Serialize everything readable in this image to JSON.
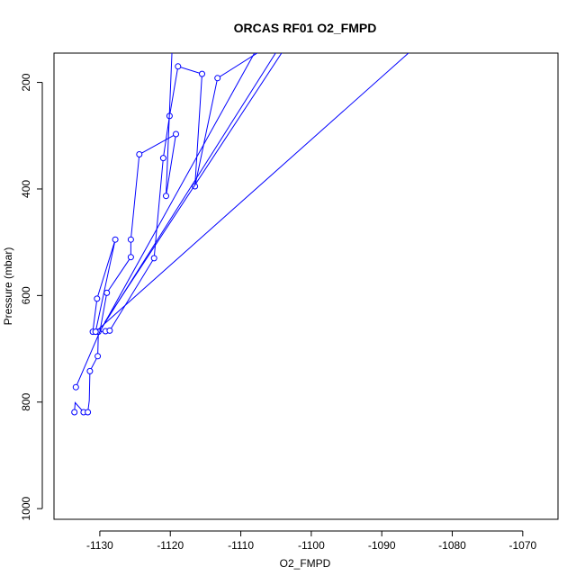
{
  "chart_data": {
    "type": "line",
    "title": "ORCAS RF01 O2_FMPD",
    "xlabel": "O2_FMPD",
    "ylabel": "Pressure (mbar)",
    "xlim": [
      -1136.5,
      -1065
    ],
    "ylim": [
      1020,
      145
    ],
    "y_reversed": true,
    "grid": false,
    "legend": "none",
    "series_color": "#0000ff",
    "x_ticks": [
      -1130,
      -1120,
      -1110,
      -1100,
      -1090,
      -1080,
      -1070
    ],
    "x_tick_labels": [
      "-1130",
      "-1120",
      "-1110",
      "-1100",
      "-1090",
      "-1080",
      "-1070"
    ],
    "y_ticks": [
      200,
      400,
      600,
      800,
      1000
    ],
    "y_tick_labels": [
      "200",
      "400",
      "600",
      "800",
      "1000"
    ],
    "series": [
      {
        "points": [
          [
            -1133.6,
            819
          ],
          [
            -1133.5,
            801
          ],
          [
            -1132.3,
            819
          ],
          [
            -1131.7,
            819
          ],
          [
            -1131.5,
            797
          ],
          [
            -1131.4,
            742
          ],
          [
            -1130.3,
            714
          ],
          [
            -1130.2,
            668
          ],
          [
            -1129.2,
            667
          ],
          [
            -1128.6,
            666
          ],
          [
            -1122.3,
            530
          ],
          [
            -1121.0,
            342
          ],
          [
            -1120.1,
            263
          ],
          [
            -1118.9,
            170
          ],
          [
            -1115.5,
            184
          ],
          [
            -1116.5,
            395
          ],
          [
            -1113.3,
            192
          ],
          [
            -1097.5,
            60
          ],
          [
            -1105.5,
            60
          ]
        ],
        "markers": [
          [
            -1133.6,
            819
          ],
          [
            -1132.3,
            819
          ],
          [
            -1131.7,
            819
          ],
          [
            -1131.4,
            742
          ],
          [
            -1130.3,
            714
          ],
          [
            -1130.2,
            668
          ],
          [
            -1129.2,
            667
          ],
          [
            -1128.6,
            666
          ],
          [
            -1122.3,
            530
          ],
          [
            -1121.0,
            342
          ],
          [
            -1120.1,
            263
          ],
          [
            -1118.9,
            170
          ],
          [
            -1115.5,
            184
          ],
          [
            -1116.5,
            395
          ],
          [
            -1113.3,
            192
          ]
        ]
      },
      {
        "points": [
          [
            -1133.4,
            772
          ],
          [
            -1130.0,
            668
          ],
          [
            -1129.0,
            595
          ],
          [
            -1125.6,
            528
          ],
          [
            -1125.6,
            495
          ],
          [
            -1124.4,
            335
          ],
          [
            -1119.2,
            297
          ],
          [
            -1120.6,
            413
          ],
          [
            -1119.5,
            60
          ],
          [
            -1127.5,
            60
          ]
        ],
        "markers": [
          [
            -1133.4,
            772
          ],
          [
            -1129.0,
            595
          ],
          [
            -1125.6,
            528
          ],
          [
            -1125.6,
            495
          ],
          [
            -1124.4,
            335
          ],
          [
            -1119.2,
            297
          ],
          [
            -1120.6,
            413
          ]
        ]
      },
      {
        "points": [
          [
            -1131.0,
            668
          ],
          [
            -1130.4,
            606
          ],
          [
            -1127.8,
            495
          ],
          [
            -1130.6,
            668
          ],
          [
            -1079.0,
            60
          ]
        ],
        "markers": [
          [
            -1131.0,
            668
          ],
          [
            -1130.4,
            606
          ],
          [
            -1127.8,
            495
          ],
          [
            -1130.6,
            668
          ]
        ]
      },
      {
        "points": [
          [
            -1130.0,
            668
          ],
          [
            -1104.5,
            60
          ]
        ],
        "markers": []
      },
      {
        "points": [
          [
            -1129.7,
            660
          ],
          [
            -1101.0,
            60
          ]
        ],
        "markers": []
      },
      {
        "points": [
          [
            -1129.3,
            650
          ],
          [
            -1100.0,
            60
          ]
        ],
        "markers": []
      }
    ]
  }
}
